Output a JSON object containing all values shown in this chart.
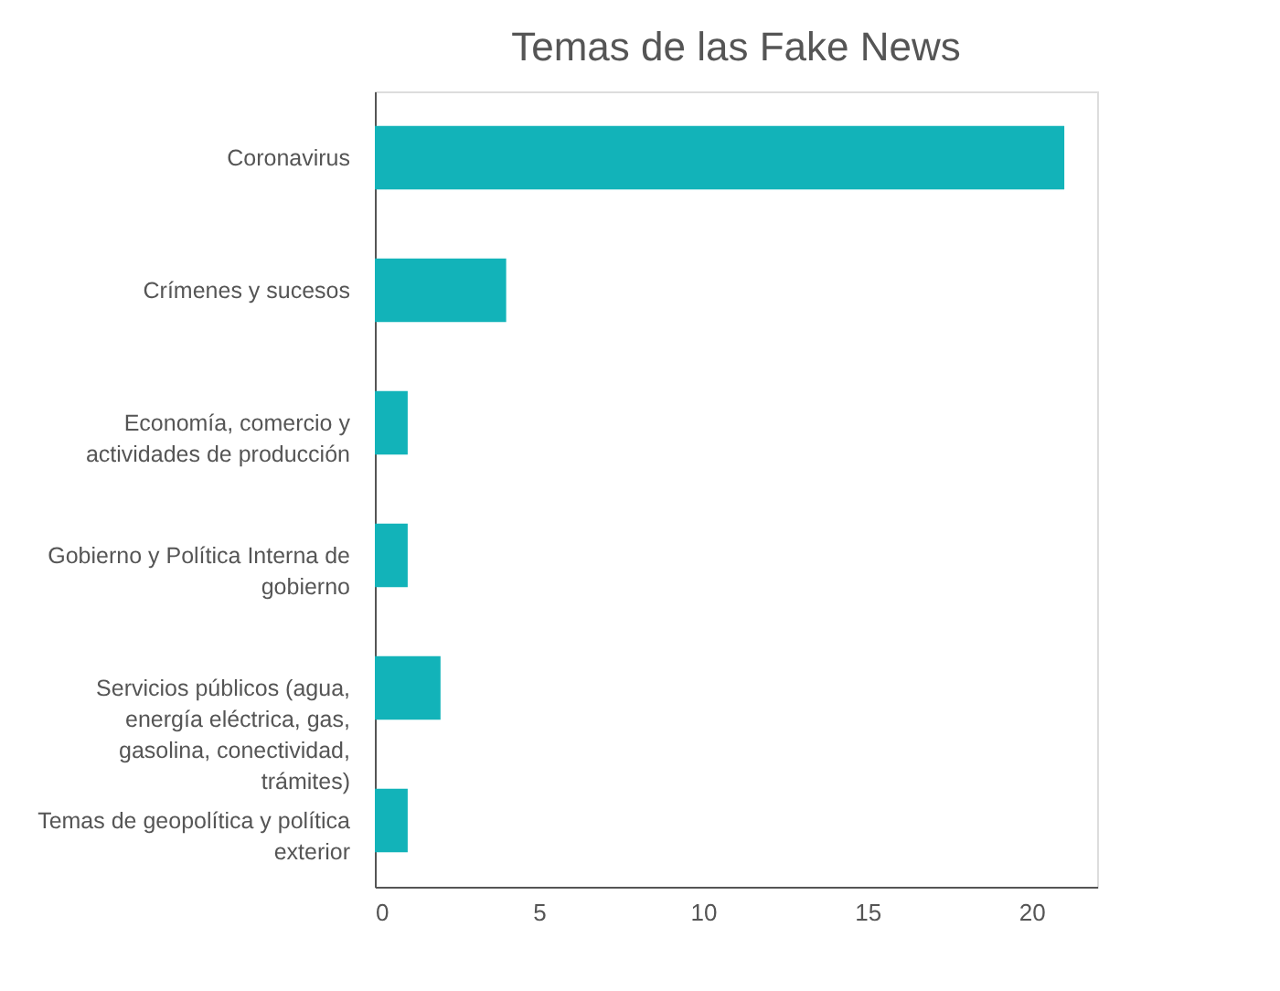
{
  "chart_data": {
    "type": "bar",
    "orientation": "horizontal",
    "title": "Temas de las Fake News",
    "categories": [
      "Coronavirus",
      "Crímenes y sucesos",
      "Economía, comercio y actividades de producción",
      "Gobierno y Política Interna de gobierno",
      "Servicios públicos (agua, energía eléctrica, gas, gasolina, conectividad, trámites)",
      "Temas de geopolítica y política exterior"
    ],
    "values": [
      21,
      4,
      1,
      1,
      2,
      1
    ],
    "color": "#12b3b9",
    "xlim": [
      0,
      22
    ],
    "xticks": [
      0,
      5,
      10,
      15,
      20
    ],
    "grid": false
  }
}
